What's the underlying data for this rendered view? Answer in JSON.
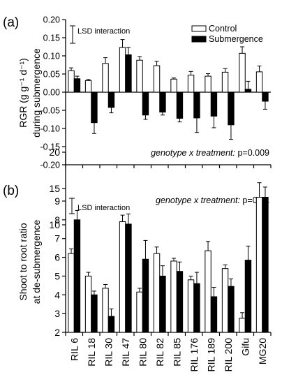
{
  "chart_data": [
    {
      "type": "bar",
      "panel_label": "(a)",
      "categories": [
        "RIL 6",
        "RIL 18",
        "RIL 30",
        "RIL 47",
        "RIL 80",
        "RIL 82",
        "RIL 85",
        "RIL 176",
        "RIL 189",
        "RIL 200",
        "Gifu",
        "MG20"
      ],
      "ylabel_line1": "RGR (g g⁻¹ d⁻¹)",
      "ylabel_line2": "during submergence",
      "ylim": [
        -0.2,
        0.2
      ],
      "yticks": [
        0.2,
        0.15,
        0.1,
        0.05,
        0.0,
        -0.05,
        -0.1,
        -0.15,
        -0.2
      ],
      "ytick_labels": [
        "0.20",
        "0.15",
        "0.10",
        "0.05",
        "0.00",
        "-0.05",
        "-0.10",
        "-0.15",
        "-0.20"
      ],
      "series": [
        {
          "name": "Control",
          "color": "#ffffff",
          "values": [
            0.059,
            0.032,
            0.079,
            0.123,
            0.088,
            0.073,
            0.036,
            0.047,
            0.044,
            0.055,
            0.107,
            0.056
          ],
          "errors": [
            0.008,
            0.003,
            0.016,
            0.022,
            0.01,
            0.012,
            0.003,
            0.01,
            0.007,
            0.01,
            0.018,
            0.016
          ]
        },
        {
          "name": "Submergence",
          "color": "#000000",
          "values": [
            0.037,
            -0.084,
            -0.042,
            0.103,
            -0.063,
            -0.055,
            -0.072,
            -0.071,
            -0.066,
            -0.09,
            0.008,
            -0.025
          ],
          "errors": [
            0.007,
            0.03,
            0.015,
            0.02,
            0.012,
            0.008,
            0.01,
            0.04,
            0.032,
            0.04,
            0.022,
            0.022
          ]
        }
      ],
      "lsd_label": "LSD interaction",
      "stat_italic": "genotype x treatment:",
      "stat_value": "p=0.009"
    },
    {
      "type": "bar",
      "panel_label": "(b)",
      "categories": [
        "RIL 6",
        "RIL 18",
        "RIL 30",
        "RIL 47",
        "RIL 80",
        "RIL 82",
        "RIL 85",
        "RIL 176",
        "RIL 189",
        "RIL 200",
        "Gifu",
        "MG20"
      ],
      "ylabel_line1": "Shoot to root ratio",
      "ylabel_line2": "at de-submergence",
      "axis_break": true,
      "ylim_lower": [
        2,
        9
      ],
      "ylim_upper": [
        10,
        20
      ],
      "yticks": [
        2,
        3,
        4,
        5,
        6,
        7,
        8,
        9,
        10,
        15,
        20
      ],
      "series": [
        {
          "name": "Control",
          "color": "#ffffff",
          "values": [
            6.2,
            5.0,
            4.35,
            7.9,
            4.15,
            6.2,
            5.8,
            4.8,
            6.35,
            5.4,
            2.75,
            13.8
          ],
          "errors": [
            0.25,
            0.2,
            0.2,
            0.35,
            0.2,
            0.35,
            0.15,
            0.2,
            0.5,
            0.2,
            0.3,
            2.0
          ]
        },
        {
          "name": "Submergence",
          "color": "#000000",
          "values": [
            8.0,
            4.0,
            2.85,
            10.1,
            5.9,
            5.0,
            5.25,
            4.6,
            3.9,
            4.45,
            5.85,
            13.8
          ],
          "errors": [
            0.5,
            0.2,
            0.4,
            1.4,
            1.0,
            0.55,
            0.5,
            0.6,
            0.5,
            0.4,
            0.75,
            1.4
          ]
        }
      ],
      "lsd_label": "LSD interaction",
      "stat_italic": "genotype x treatment:",
      "stat_value": "p=0.01"
    }
  ]
}
